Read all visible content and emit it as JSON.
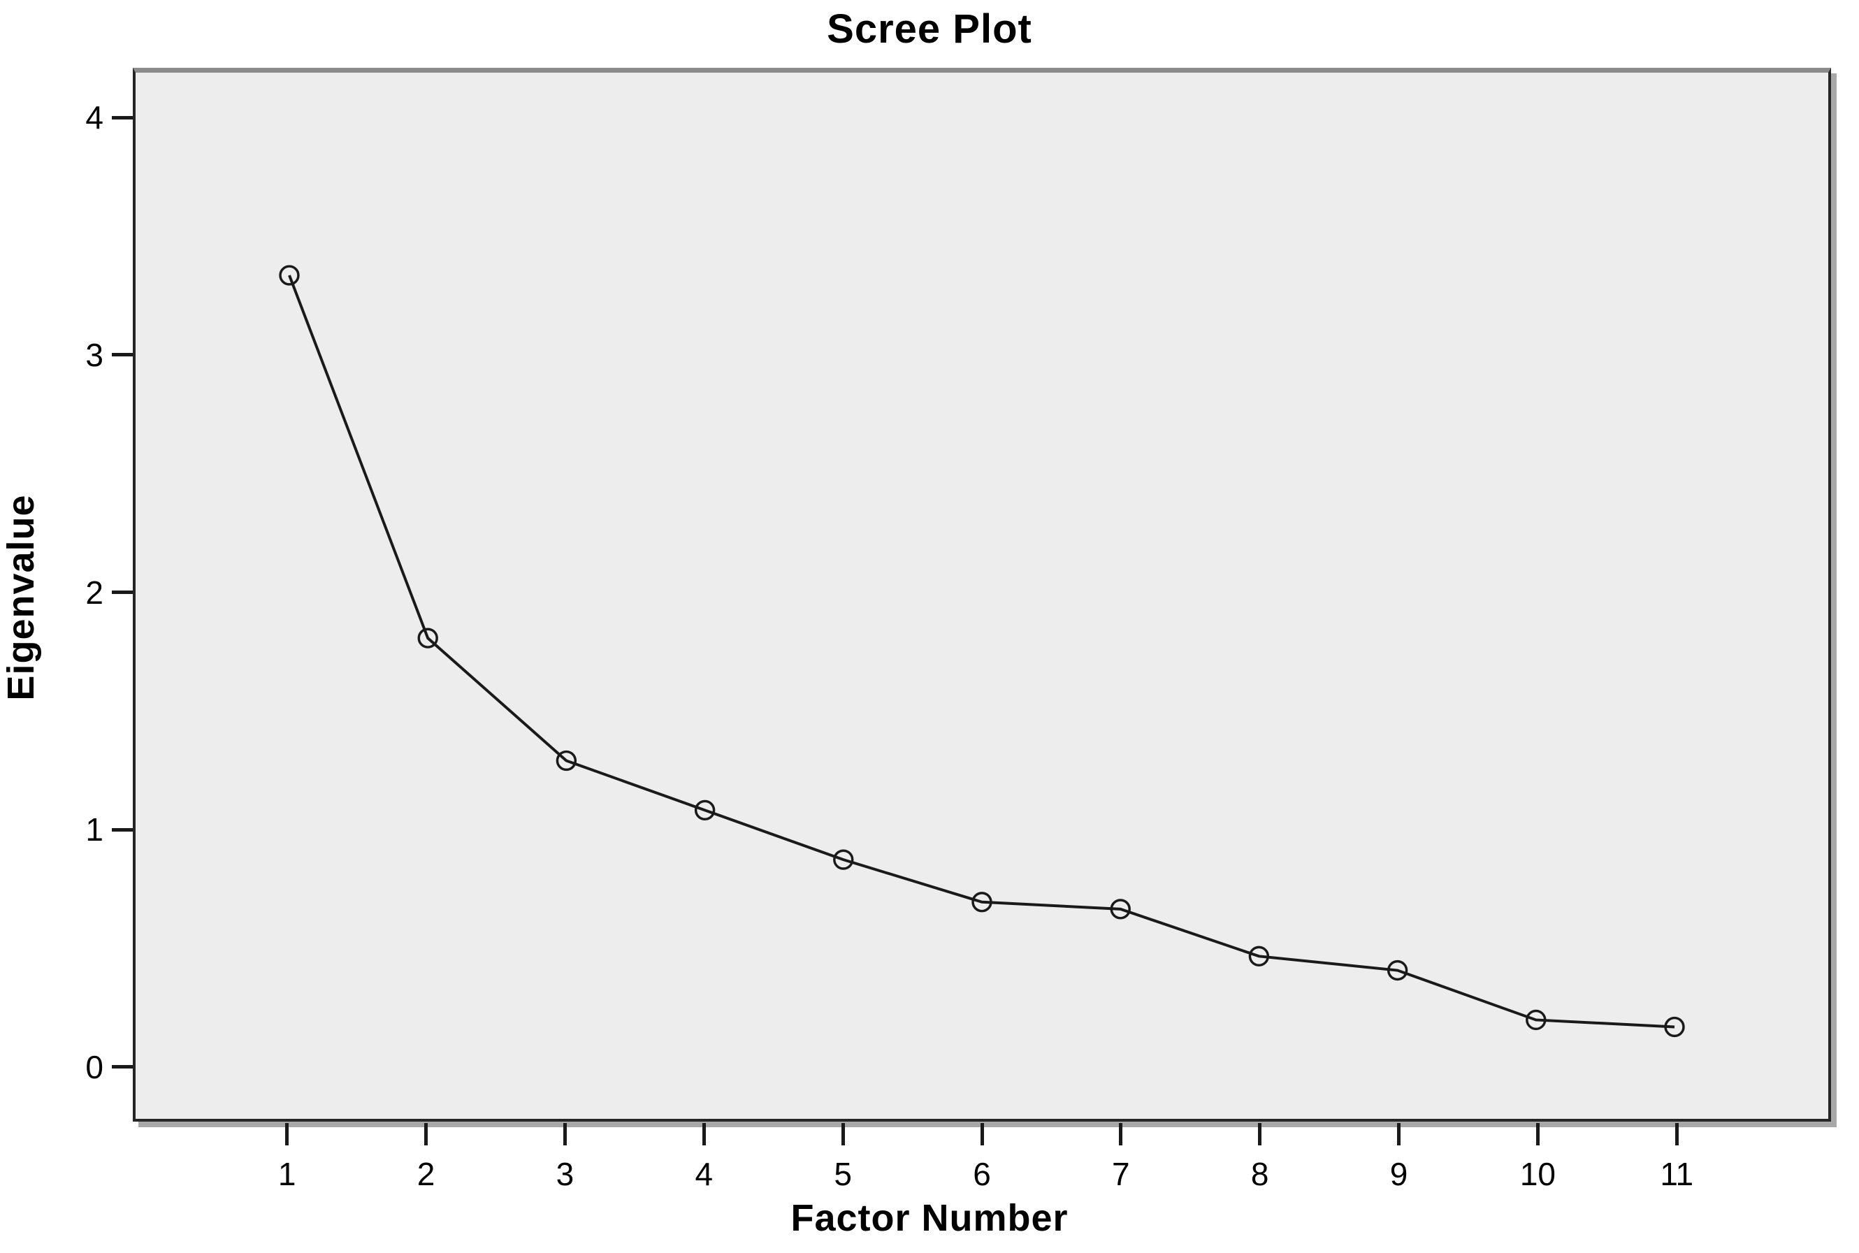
{
  "chart_data": {
    "type": "line",
    "title": "Scree Plot",
    "xlabel": "Factor Number",
    "ylabel": "Eigenvalue",
    "x": [
      1,
      2,
      3,
      4,
      5,
      6,
      7,
      8,
      9,
      10,
      11
    ],
    "values": [
      3.35,
      1.81,
      1.29,
      1.08,
      0.87,
      0.69,
      0.66,
      0.46,
      0.4,
      0.19,
      0.16
    ],
    "x_ticks": [
      1,
      2,
      3,
      4,
      5,
      6,
      7,
      8,
      9,
      10,
      11
    ],
    "y_ticks": [
      0,
      1,
      2,
      3,
      4
    ],
    "xlim": [
      -0.11,
      12.11
    ],
    "ylim": [
      -0.23,
      4.21
    ],
    "grid": false,
    "legend": "none",
    "marker": "open-circle",
    "colors": {
      "line": "#1a1a1a",
      "marker_stroke": "#1a1a1a",
      "plot_background": "#ededed",
      "page_background": "#ffffff",
      "frame": "#262626",
      "frame_top": "#8c8c8c",
      "shadow": "#a8a8a8",
      "text": "#000000"
    }
  }
}
